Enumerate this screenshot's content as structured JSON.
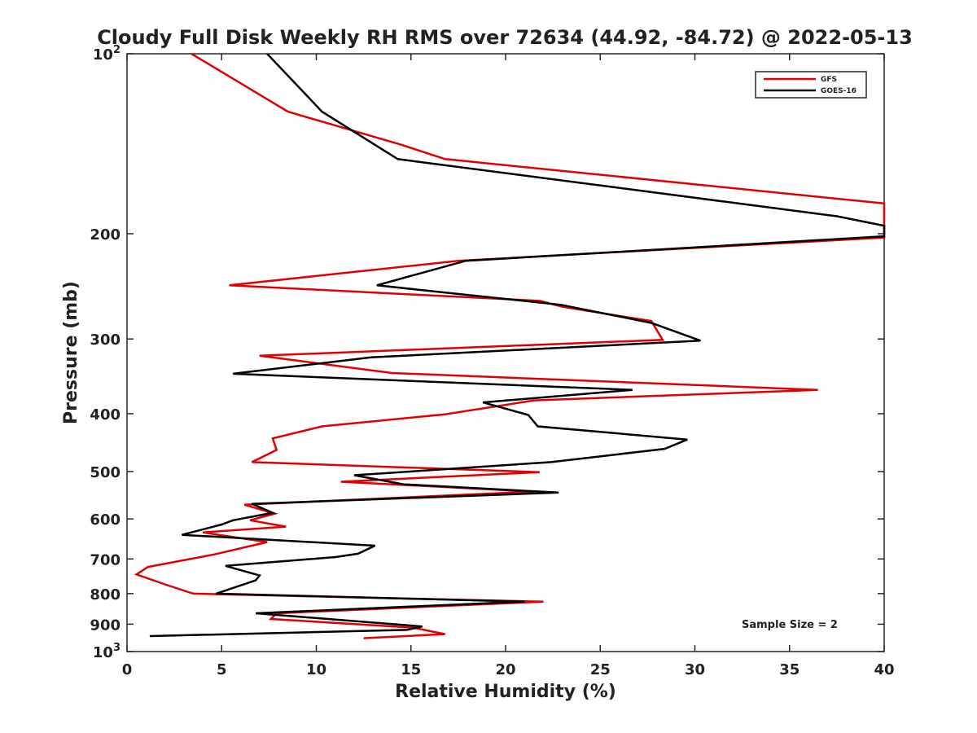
{
  "chart_data": {
    "type": "line",
    "title": "Cloudy Full Disk Weekly RH RMS over 72634 (44.92, -84.72) @ 2022-05-13",
    "xlabel": "Relative Humidity (%)",
    "ylabel": "Pressure (mb)",
    "xlim": [
      0,
      40
    ],
    "ylim": [
      100,
      1000
    ],
    "yscale": "log",
    "y_reversed": true,
    "x_ticks": [
      "0",
      "5",
      "10",
      "15",
      "20",
      "25",
      "30",
      "35",
      "40"
    ],
    "y_ticks": [
      {
        "value": 100,
        "base": "10",
        "exp": "2"
      },
      {
        "value": 200,
        "label": "200"
      },
      {
        "value": 300,
        "label": "300"
      },
      {
        "value": 400,
        "label": "400"
      },
      {
        "value": 500,
        "label": "500"
      },
      {
        "value": 600,
        "label": "600"
      },
      {
        "value": 700,
        "label": "700"
      },
      {
        "value": 800,
        "label": "800"
      },
      {
        "value": 900,
        "label": "900"
      },
      {
        "value": 1000,
        "base": "10",
        "exp": "3"
      }
    ],
    "legend_position": "top-right",
    "annotation": "Sample Size = 2",
    "series": [
      {
        "name": "GFS",
        "color": "#e00000",
        "points": [
          [
            3.4,
            100
          ],
          [
            8.5,
            125
          ],
          [
            14.5,
            142
          ],
          [
            16.8,
            150
          ],
          [
            40,
            178
          ],
          [
            40,
            203
          ],
          [
            17.5,
            222
          ],
          [
            5.4,
            244
          ],
          [
            21.8,
            259
          ],
          [
            23,
            265
          ],
          [
            27.7,
            280
          ],
          [
            28.3,
            301
          ],
          [
            7,
            320
          ],
          [
            14,
            342
          ],
          [
            36.5,
            365
          ],
          [
            21.5,
            380
          ],
          [
            16.8,
            401
          ],
          [
            10.3,
            420
          ],
          [
            7.7,
            440
          ],
          [
            7.9,
            460
          ],
          [
            6.6,
            482
          ],
          [
            21.8,
            501
          ],
          [
            11.3,
            520
          ],
          [
            21.5,
            540
          ],
          [
            6.2,
            568
          ],
          [
            7.8,
            588
          ],
          [
            6.5,
            603
          ],
          [
            8.4,
            618
          ],
          [
            4,
            632
          ],
          [
            7.4,
            656
          ],
          [
            4.6,
            688
          ],
          [
            1.1,
            722
          ],
          [
            0.5,
            743
          ],
          [
            2,
            772
          ],
          [
            3.5,
            800
          ],
          [
            22,
            825
          ],
          [
            7.9,
            863
          ],
          [
            7.6,
            882
          ],
          [
            15.1,
            912
          ],
          [
            16.8,
            935
          ],
          [
            12.5,
            950
          ]
        ]
      },
      {
        "name": "GOES-16",
        "color": "#000000",
        "points": [
          [
            7.4,
            100
          ],
          [
            10.3,
            125
          ],
          [
            14.3,
            150
          ],
          [
            37.5,
            187
          ],
          [
            40,
            194
          ],
          [
            40,
            202
          ],
          [
            17.9,
            222
          ],
          [
            13.2,
            244
          ],
          [
            22.9,
            263
          ],
          [
            27.7,
            282
          ],
          [
            30.3,
            302
          ],
          [
            12.9,
            322
          ],
          [
            5.6,
            343
          ],
          [
            26.7,
            365
          ],
          [
            18.8,
            383
          ],
          [
            21.2,
            402
          ],
          [
            21.7,
            420
          ],
          [
            29.6,
            442
          ],
          [
            28.4,
            458
          ],
          [
            22.4,
            482
          ],
          [
            12,
            507
          ],
          [
            14.6,
            525
          ],
          [
            22.8,
            542
          ],
          [
            6.6,
            566
          ],
          [
            7.7,
            586
          ],
          [
            5.6,
            603
          ],
          [
            5,
            613
          ],
          [
            2.9,
            638
          ],
          [
            13.1,
            665
          ],
          [
            12.2,
            686
          ],
          [
            11,
            695
          ],
          [
            5.2,
            719
          ],
          [
            7,
            746
          ],
          [
            6.8,
            760
          ],
          [
            4.7,
            800
          ],
          [
            21,
            825
          ],
          [
            6.8,
            863
          ],
          [
            15.6,
            908
          ],
          [
            14.8,
            920
          ],
          [
            1.2,
            942
          ]
        ]
      }
    ]
  }
}
